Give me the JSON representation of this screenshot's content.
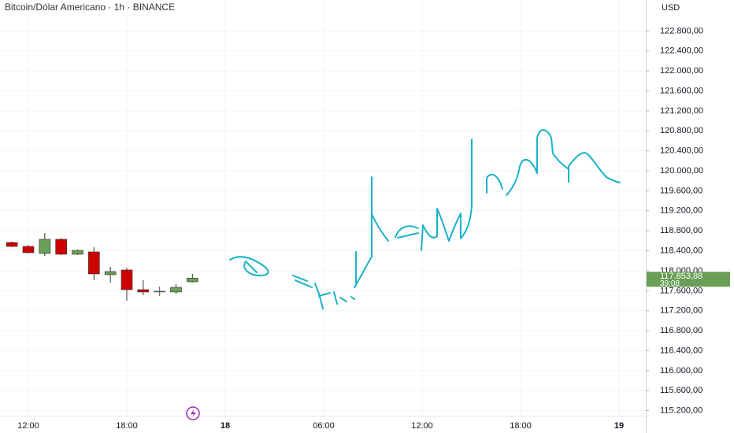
{
  "chart_data": {
    "type": "candlestick",
    "title": "Bitcoin/Dólar Americano · 1h · BINANCE",
    "currency": "USD",
    "up_color": "#6a9f56",
    "down_color": "#cc0000",
    "doji_color": "#555555",
    "grid": true,
    "ylim": [
      115100,
      123420
    ],
    "yticks": [
      {
        "value": 122800,
        "label": "122.800,00"
      },
      {
        "value": 122400,
        "label": "122.400,00"
      },
      {
        "value": 122000,
        "label": "122.000,00"
      },
      {
        "value": 121600,
        "label": "121.600,00"
      },
      {
        "value": 121200,
        "label": "121.200,00"
      },
      {
        "value": 120800,
        "label": "120.800,00"
      },
      {
        "value": 120400,
        "label": "120.400,00"
      },
      {
        "value": 120000,
        "label": "120.000,00"
      },
      {
        "value": 119600,
        "label": "119.600,00"
      },
      {
        "value": 119200,
        "label": "119.200,00"
      },
      {
        "value": 118800,
        "label": "118.800,00"
      },
      {
        "value": 118400,
        "label": "118.400,00"
      },
      {
        "value": 118000,
        "label": "118.000,00"
      },
      {
        "value": 117600,
        "label": "117.600,00"
      },
      {
        "value": 117200,
        "label": "117.200,00"
      },
      {
        "value": 116800,
        "label": "116.800,00"
      },
      {
        "value": 116400,
        "label": "116.400,00"
      },
      {
        "value": 116000,
        "label": "116.000,00"
      },
      {
        "value": 115600,
        "label": "115.600,00"
      },
      {
        "value": 115200,
        "label": "115.200,00"
      }
    ],
    "xticks": [
      "12:00",
      "18:00",
      "18",
      "06:00",
      "12:00",
      "18:00",
      "19"
    ],
    "candles": [
      {
        "open": 118567,
        "high": 118583,
        "low": 118472,
        "close": 118488
      },
      {
        "open": 118488,
        "high": 118520,
        "low": 118346,
        "close": 118362
      },
      {
        "open": 118346,
        "high": 118756,
        "low": 118299,
        "close": 118630
      },
      {
        "open": 118630,
        "high": 118661,
        "low": 118315,
        "close": 118331
      },
      {
        "open": 118331,
        "high": 118425,
        "low": 118315,
        "close": 118409
      },
      {
        "open": 118378,
        "high": 118472,
        "low": 117811,
        "close": 117937
      },
      {
        "open": 117921,
        "high": 118079,
        "low": 117764,
        "close": 117984
      },
      {
        "open": 118016,
        "high": 118063,
        "low": 117402,
        "close": 117622
      },
      {
        "open": 117622,
        "high": 117811,
        "low": 117512,
        "close": 117575
      },
      {
        "open": 117591,
        "high": 117685,
        "low": 117496,
        "close": 117591
      },
      {
        "open": 117575,
        "high": 117732,
        "low": 117543,
        "close": 117669
      },
      {
        "open": 117780,
        "high": 117937,
        "low": 117764,
        "close": 117853.88
      }
    ],
    "last_price": {
      "value": 117853.88,
      "label": "117.853,88"
    },
    "countdown": "39:08"
  }
}
